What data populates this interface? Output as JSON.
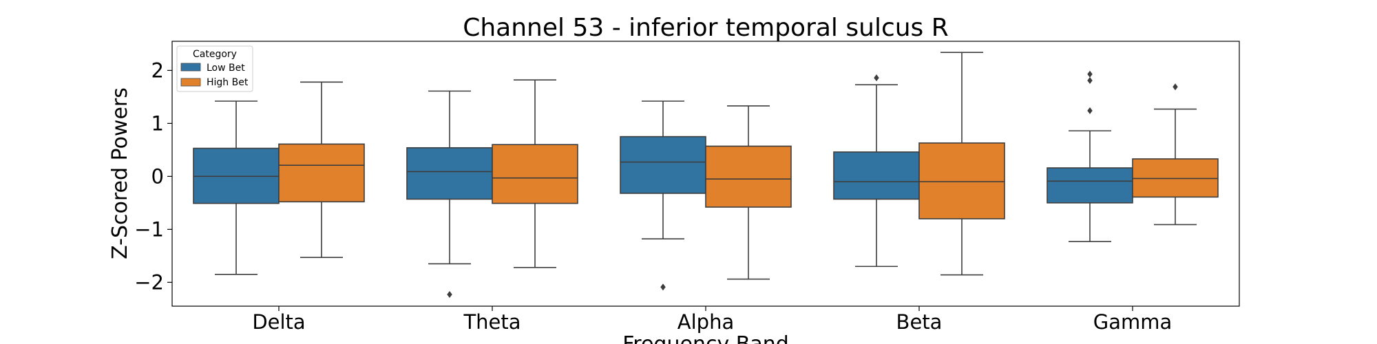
{
  "chart_data": {
    "type": "box",
    "title": "Channel 53 - inferior temporal sulcus R",
    "xlabel": "Frequency Band",
    "ylabel": "Z-Scored Powers",
    "ylim": [
      -2.45,
      2.55
    ],
    "yticks": [
      -2,
      -1,
      0,
      1,
      2
    ],
    "ytick_labels": [
      "−2",
      "−1",
      "0",
      "1",
      "2"
    ],
    "categories": [
      "Delta",
      "Theta",
      "Alpha",
      "Beta",
      "Gamma"
    ],
    "legend": {
      "title": "Category",
      "position": "top-left",
      "entries": [
        "Low Bet",
        "High Bet"
      ]
    },
    "series": [
      {
        "name": "Low Bet",
        "color": "#3274a1",
        "boxes": [
          {
            "category": "Delta",
            "whisker_low": -1.85,
            "q1": -0.51,
            "median": 0.0,
            "q3": 0.53,
            "whisker_high": 1.42,
            "outliers": []
          },
          {
            "category": "Theta",
            "whisker_low": -1.65,
            "q1": -0.43,
            "median": 0.09,
            "q3": 0.54,
            "whisker_high": 1.61,
            "outliers": [
              -2.23
            ]
          },
          {
            "category": "Alpha",
            "whisker_low": -1.18,
            "q1": -0.32,
            "median": 0.27,
            "q3": 0.75,
            "whisker_high": 1.42,
            "outliers": [
              -2.09
            ]
          },
          {
            "category": "Beta",
            "whisker_low": -1.7,
            "q1": -0.43,
            "median": -0.1,
            "q3": 0.46,
            "whisker_high": 1.73,
            "outliers": [
              1.86
            ]
          },
          {
            "category": "Gamma",
            "whisker_low": -1.23,
            "q1": -0.5,
            "median": -0.09,
            "q3": 0.16,
            "whisker_high": 0.86,
            "outliers": [
              1.24,
              1.81,
              1.93
            ]
          }
        ]
      },
      {
        "name": "High Bet",
        "color": "#e1812c",
        "boxes": [
          {
            "category": "Delta",
            "whisker_low": -1.53,
            "q1": -0.48,
            "median": 0.21,
            "q3": 0.61,
            "whisker_high": 1.78,
            "outliers": []
          },
          {
            "category": "Theta",
            "whisker_low": -1.72,
            "q1": -0.51,
            "median": -0.03,
            "q3": 0.6,
            "whisker_high": 1.82,
            "outliers": []
          },
          {
            "category": "Alpha",
            "whisker_low": -1.94,
            "q1": -0.58,
            "median": -0.05,
            "q3": 0.57,
            "whisker_high": 1.33,
            "outliers": []
          },
          {
            "category": "Beta",
            "whisker_low": -1.86,
            "q1": -0.8,
            "median": -0.1,
            "q3": 0.63,
            "whisker_high": 2.34,
            "outliers": []
          },
          {
            "category": "Gamma",
            "whisker_low": -0.91,
            "q1": -0.39,
            "median": -0.04,
            "q3": 0.33,
            "whisker_high": 1.27,
            "outliers": [
              1.69
            ]
          }
        ]
      }
    ]
  }
}
